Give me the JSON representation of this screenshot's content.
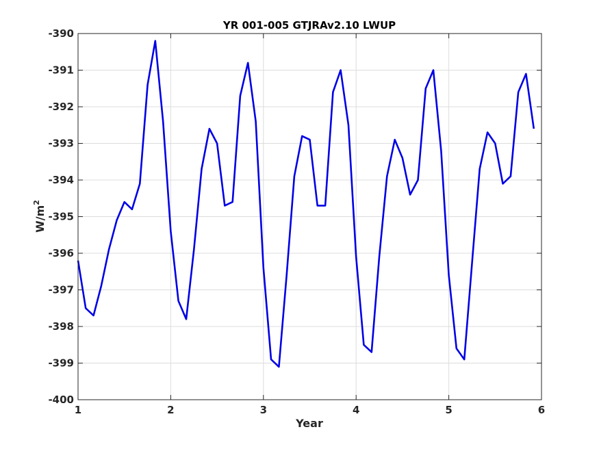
{
  "chart_data": {
    "type": "line",
    "title": "YR 001-005 GTJRAv2.10 LWUP",
    "xlabel": "Year",
    "ylabel_base": "W/m",
    "ylabel_sup": "2",
    "xlim": [
      1,
      6
    ],
    "ylim": [
      -400,
      -390
    ],
    "xticks": [
      1,
      2,
      3,
      4,
      5,
      6
    ],
    "yticks": [
      -390,
      -391,
      -392,
      -393,
      -394,
      -395,
      -396,
      -397,
      -398,
      -399,
      -400
    ],
    "grid": true,
    "series": [
      {
        "color": "#0000e6",
        "x": [
          1.0,
          1.083,
          1.167,
          1.25,
          1.333,
          1.417,
          1.5,
          1.583,
          1.667,
          1.75,
          1.833,
          1.917,
          2.0,
          2.083,
          2.167,
          2.25,
          2.333,
          2.417,
          2.5,
          2.583,
          2.667,
          2.75,
          2.833,
          2.917,
          3.0,
          3.083,
          3.167,
          3.25,
          3.333,
          3.417,
          3.5,
          3.583,
          3.667,
          3.75,
          3.833,
          3.917,
          4.0,
          4.083,
          4.167,
          4.25,
          4.333,
          4.417,
          4.5,
          4.583,
          4.667,
          4.75,
          4.833,
          4.917,
          5.0,
          5.083,
          5.167,
          5.25,
          5.333,
          5.417,
          5.5,
          5.583,
          5.667,
          5.75,
          5.833,
          5.917
        ],
        "values": [
          -396.2,
          -397.5,
          -397.7,
          -396.9,
          -395.9,
          -395.1,
          -394.6,
          -394.8,
          -394.1,
          -391.4,
          -390.2,
          -392.4,
          -395.4,
          -397.3,
          -397.8,
          -395.9,
          -393.7,
          -392.6,
          -393.0,
          -394.7,
          -394.6,
          -391.7,
          -390.8,
          -392.4,
          -396.4,
          -398.9,
          -399.1,
          -396.6,
          -393.9,
          -392.8,
          -392.9,
          -394.7,
          -394.7,
          -391.6,
          -391.0,
          -392.5,
          -396.1,
          -398.5,
          -398.7,
          -396.1,
          -393.9,
          -392.9,
          -393.4,
          -394.4,
          -394.0,
          -391.5,
          -391.0,
          -393.2,
          -396.6,
          -398.6,
          -398.9,
          -396.3,
          -393.7,
          -392.7,
          -393.0,
          -394.1,
          -393.9,
          -391.6,
          -391.1,
          -392.6
        ]
      }
    ]
  }
}
